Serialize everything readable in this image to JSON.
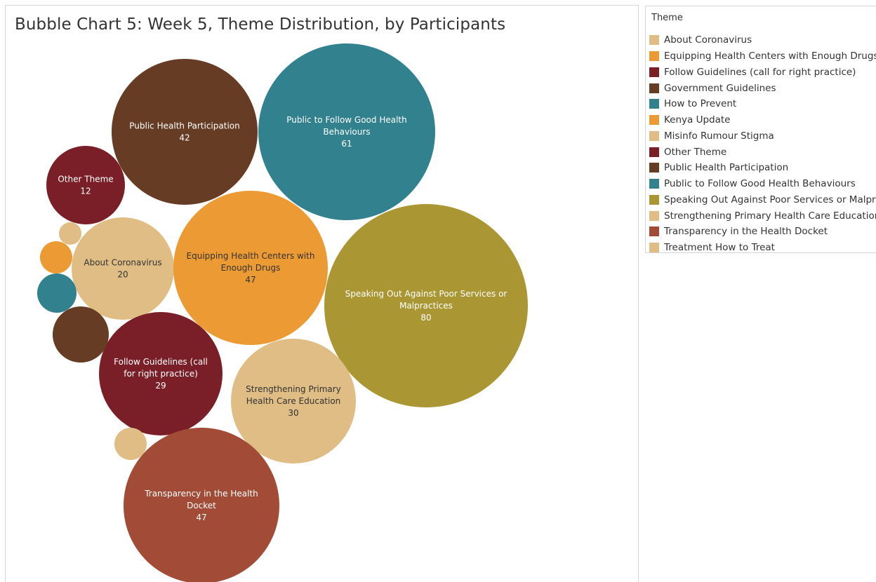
{
  "chart_data": {
    "type": "bubble",
    "title": "Bubble Chart 5: Week 5, Theme Distribution, by Participants",
    "legend_title": "Theme",
    "legend_position": "right",
    "legend": [
      {
        "name": "About Coronavirus",
        "color": "#dfbd85"
      },
      {
        "name": "Equipping Health Centers with Enough Drugs",
        "color": "#ec9a33"
      },
      {
        "name": "Follow Guidelines (call for right practice)",
        "color": "#7a1f28"
      },
      {
        "name": "Government Guidelines",
        "color": "#663c24"
      },
      {
        "name": "How to Prevent",
        "color": "#31818f"
      },
      {
        "name": "Kenya Update",
        "color": "#ec9a33"
      },
      {
        "name": "Misinfo Rumour Stigma",
        "color": "#dfbd85"
      },
      {
        "name": "Other Theme",
        "color": "#7a1f28"
      },
      {
        "name": "Public Health Participation",
        "color": "#663c24"
      },
      {
        "name": "Public to Follow Good Health Behaviours",
        "color": "#31818f"
      },
      {
        "name": "Speaking Out Against Poor Services or Malpra..",
        "color": "#ab9634"
      },
      {
        "name": "Strengthening Primary Health Care Education",
        "color": "#dfbd85"
      },
      {
        "name": "Transparency in the Health Docket",
        "color": "#a24c37"
      },
      {
        "name": "Treatment How to Treat",
        "color": "#dfbd85"
      }
    ],
    "bubbles": [
      {
        "label_lines": [
          "Public Health Participation"
        ],
        "value": 42,
        "color": "#663c24",
        "text_color": "#ffffff"
      },
      {
        "label_lines": [
          "Public to Follow Good Health",
          "Behaviours"
        ],
        "value": 61,
        "color": "#31818f",
        "text_color": "#ffffff"
      },
      {
        "label_lines": [
          "Other Theme"
        ],
        "value": 12,
        "color": "#7a1f28",
        "text_color": "#ffffff"
      },
      {
        "label_lines": [
          "About Coronavirus"
        ],
        "value": 20,
        "color": "#dfbd85",
        "text_color": "#333333"
      },
      {
        "label_lines": [
          "Equipping Health Centers with",
          "Enough Drugs"
        ],
        "value": 47,
        "color": "#ec9a33",
        "text_color": "#333333"
      },
      {
        "label_lines": [
          "Speaking Out Against Poor Services or",
          "Malpractices"
        ],
        "value": 80,
        "color": "#ab9634",
        "text_color": "#ffffff"
      },
      {
        "label_lines": [
          "Follow Guidelines (call",
          "for right practice)"
        ],
        "value": 29,
        "color": "#7a1f28",
        "text_color": "#ffffff"
      },
      {
        "label_lines": [
          "Strengthening Primary",
          "Health Care Education"
        ],
        "value": 30,
        "color": "#dfbd85",
        "text_color": "#333333"
      },
      {
        "label_lines": [
          "Transparency in the Health",
          "Docket"
        ],
        "value": 47,
        "color": "#a24c37",
        "text_color": "#ffffff"
      },
      {
        "label_lines": [],
        "value": null,
        "color": "#dfbd85",
        "text_color": "#333333"
      },
      {
        "label_lines": [],
        "value": null,
        "color": "#ec9a33",
        "text_color": "#333333"
      },
      {
        "label_lines": [],
        "value": null,
        "color": "#31818f",
        "text_color": "#ffffff"
      },
      {
        "label_lines": [],
        "value": null,
        "color": "#663c24",
        "text_color": "#ffffff"
      },
      {
        "label_lines": [],
        "value": null,
        "color": "#dfbd85",
        "text_color": "#333333"
      }
    ]
  }
}
